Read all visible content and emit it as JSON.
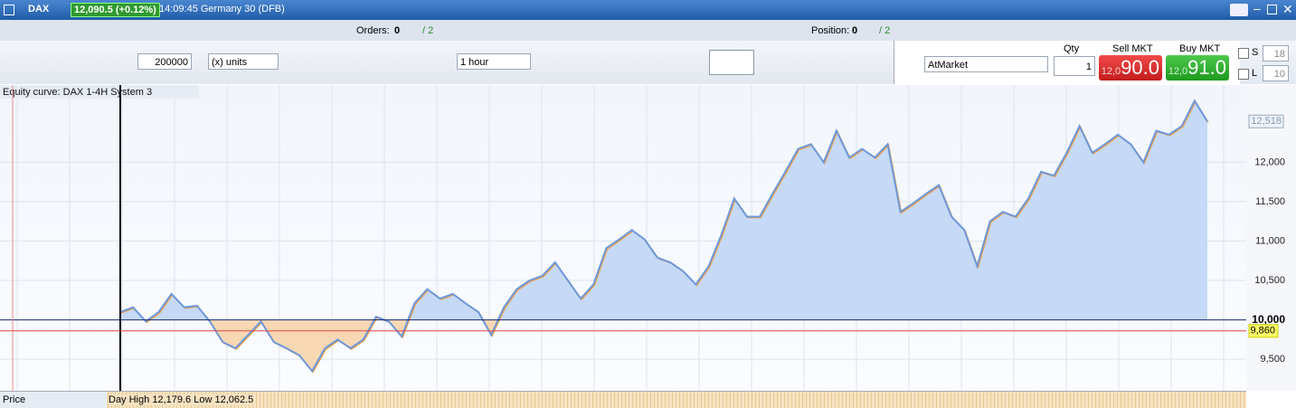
{
  "header": {
    "instrument": "DAX",
    "quote": "12,090.5 (+0.12%)",
    "time_market": "14:09:45 Germany 30 (DFB)"
  },
  "orders_bar": {
    "orders_label": "Orders:",
    "orders": "0",
    "orders_total": "/ 2",
    "position_label": "Position:",
    "position": "0",
    "position_total": "/ 2"
  },
  "order_panel": {
    "quantity": "200000",
    "units": "(x) units",
    "timeframe": "1 hour",
    "order_type": "AtMarket",
    "qty_label": "Qty",
    "qty": "1",
    "sell_label": "Sell MKT",
    "sell_prefix": "12,0",
    "sell_price": "90.0",
    "buy_label": "Buy MKT",
    "buy_prefix": "12,0",
    "buy_price": "91.0",
    "s_label": "S",
    "s_value": "18",
    "l_label": "L",
    "l_value": "10"
  },
  "chart_data": {
    "type": "area",
    "title": "Equity curve: DAX 1-4H System 3",
    "values": [
      10100,
      10160,
      9980,
      10100,
      10330,
      10160,
      10180,
      9980,
      9720,
      9640,
      9810,
      9980,
      9720,
      9640,
      9550,
      9350,
      9640,
      9750,
      9640,
      9750,
      10040,
      9980,
      9790,
      10210,
      10390,
      10270,
      10330,
      10210,
      10100,
      9810,
      10160,
      10390,
      10500,
      10560,
      10730,
      10500,
      10270,
      10450,
      10910,
      11020,
      11140,
      11020,
      10790,
      10730,
      10620,
      10450,
      10680,
      11080,
      11540,
      11310,
      11310,
      11600,
      11880,
      12170,
      12230,
      12000,
      12400,
      12060,
      12170,
      12060,
      12230,
      11370,
      11480,
      11600,
      11710,
      11310,
      11140,
      10680,
      11250,
      11370,
      11310,
      11540,
      11880,
      11830,
      12120,
      12460,
      12120,
      12230,
      12350,
      12230,
      12000,
      12400,
      12350,
      12460,
      12780,
      12518
    ],
    "baseline": 10000,
    "above_color": "#c6d9f7",
    "below_color": "#f8d8b4",
    "line_color": "#6e98dc",
    "ylim": [
      9100,
      12980
    ],
    "yticks": [
      {
        "value": 9500,
        "label": "9,500"
      },
      {
        "value": 10000,
        "label": "10,000"
      },
      {
        "value": 10500,
        "label": "10,500"
      },
      {
        "value": 11000,
        "label": "11,000"
      },
      {
        "value": 11500,
        "label": "11,500"
      },
      {
        "value": 12000,
        "label": "12,000"
      }
    ],
    "grid": true,
    "last_value": {
      "value": 12518,
      "label": "12,518"
    },
    "marker_line": {
      "value": 9860,
      "label": "9,860",
      "color": "#e04848"
    }
  },
  "price_bar": {
    "label": "Price",
    "day_high_label": "Day High",
    "day_high": "12,179.6",
    "low_label": "Low",
    "low": "12,062.5"
  }
}
